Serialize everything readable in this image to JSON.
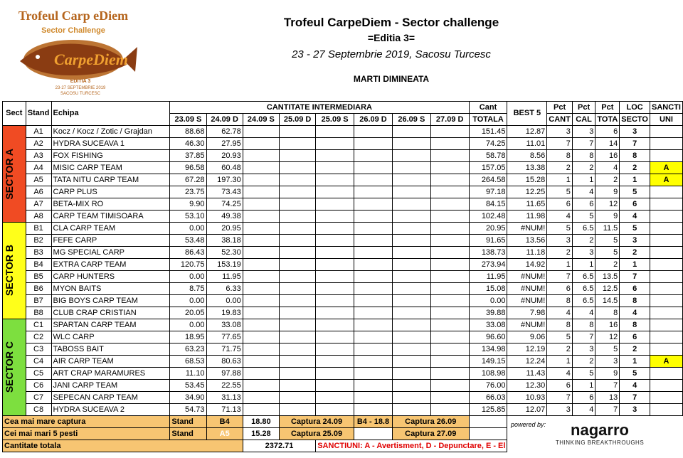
{
  "header": {
    "title": "Trofeul CarpeDiem - Sector challenge",
    "edition": "=Editia 3=",
    "dates": "23 - 27 Septembrie 2019, Sacosu Turcesc",
    "session": "MARTI DIMINEATA"
  },
  "logo": {
    "line1": "Trofeul Carp eDiem",
    "line2": "Sector Challenge",
    "brand": "CarpeDiem",
    "edition": "EDITIA 3",
    "dates": "23-27 SEPTEMBRIE 2019",
    "place": "SACOSU TURCESC"
  },
  "columns": {
    "sect": "Sect",
    "stand": "Stand",
    "echipa": "Echipa",
    "intermediara": "CANTITATE INTERMEDIARA",
    "days": [
      "23.09 S",
      "24.09 D",
      "24.09 S",
      "25.09 D",
      "25.09 S",
      "26.09 D",
      "26.09 S",
      "27.09 D"
    ],
    "cant1": "Cant",
    "cant2": "TOTALA",
    "best": "BEST 5",
    "pctcant1": "Pct",
    "pctcant2": "CANT",
    "pctcal1": "Pct",
    "pctcal2": "CAL",
    "pcttota1": "Pct",
    "pcttota2": "TOTA",
    "loc1": "LOC",
    "loc2": "SECTO",
    "sanct1": "SANCTI",
    "sanct2": "UNI"
  },
  "sectors": [
    {
      "label": "SECTOR A",
      "rows": [
        {
          "stand": "A1",
          "team": "Kocz / Kocz / Zotic / Grajdan",
          "d1": "88.68",
          "d2": "62.78",
          "total": "151.45",
          "best": "12.87",
          "pcant": "3",
          "pcal": "3",
          "ptot": "6",
          "loc": "3",
          "sanct": ""
        },
        {
          "stand": "A2",
          "team": "HYDRA SUCEAVA 1",
          "d1": "46.30",
          "d2": "27.95",
          "total": "74.25",
          "best": "11.01",
          "pcant": "7",
          "pcal": "7",
          "ptot": "14",
          "loc": "7",
          "sanct": ""
        },
        {
          "stand": "A3",
          "team": "FOX FISHING",
          "d1": "37.85",
          "d2": "20.93",
          "total": "58.78",
          "best": "8.56",
          "pcant": "8",
          "pcal": "8",
          "ptot": "16",
          "loc": "8",
          "sanct": ""
        },
        {
          "stand": "A4",
          "team": "MISIC CARP TEAM",
          "d1": "96.58",
          "d2": "60.48",
          "total": "157.05",
          "best": "13.38",
          "pcant": "2",
          "pcal": "2",
          "ptot": "4",
          "loc": "2",
          "sanct": "A"
        },
        {
          "stand": "A5",
          "team": "TATA NITU CARP TEAM",
          "d1": "67.28",
          "d2": "197.30",
          "total": "264.58",
          "best": "15.28",
          "pcant": "1",
          "pcal": "1",
          "ptot": "2",
          "loc": "1",
          "sanct": "A"
        },
        {
          "stand": "A6",
          "team": "CARP PLUS",
          "d1": "23.75",
          "d2": "73.43",
          "total": "97.18",
          "best": "12.25",
          "pcant": "5",
          "pcal": "4",
          "ptot": "9",
          "loc": "5",
          "sanct": ""
        },
        {
          "stand": "A7",
          "team": "BETA-MIX RO",
          "d1": "9.90",
          "d2": "74.25",
          "total": "84.15",
          "best": "11.65",
          "pcant": "6",
          "pcal": "6",
          "ptot": "12",
          "loc": "6",
          "sanct": ""
        },
        {
          "stand": "A8",
          "team": "CARP TEAM TIMISOARA",
          "d1": "53.10",
          "d2": "49.38",
          "total": "102.48",
          "best": "11.98",
          "pcant": "4",
          "pcal": "5",
          "ptot": "9",
          "loc": "4",
          "sanct": ""
        }
      ]
    },
    {
      "label": "SECTOR B",
      "rows": [
        {
          "stand": "B1",
          "team": "CLA CARP TEAM",
          "d1": "0.00",
          "d2": "20.95",
          "total": "20.95",
          "best": "#NUM!",
          "pcant": "5",
          "pcal": "6.5",
          "ptot": "11.5",
          "loc": "5",
          "sanct": ""
        },
        {
          "stand": "B2",
          "team": "FEFE CARP",
          "d1": "53.48",
          "d2": "38.18",
          "total": "91.65",
          "best": "13.56",
          "pcant": "3",
          "pcal": "2",
          "ptot": "5",
          "loc": "3",
          "sanct": ""
        },
        {
          "stand": "B3",
          "team": "MG SPECIAL CARP",
          "d1": "86.43",
          "d2": "52.30",
          "total": "138.73",
          "best": "11.18",
          "pcant": "2",
          "pcal": "3",
          "ptot": "5",
          "loc": "2",
          "sanct": ""
        },
        {
          "stand": "B4",
          "team": "EXTRA CARP TEAM",
          "d1": "120.75",
          "d2": "153.19",
          "total": "273.94",
          "best": "14.92",
          "pcant": "1",
          "pcal": "1",
          "ptot": "2",
          "loc": "1",
          "sanct": ""
        },
        {
          "stand": "B5",
          "team": "CARP HUNTERS",
          "d1": "0.00",
          "d2": "11.95",
          "total": "11.95",
          "best": "#NUM!",
          "pcant": "7",
          "pcal": "6.5",
          "ptot": "13.5",
          "loc": "7",
          "sanct": ""
        },
        {
          "stand": "B6",
          "team": "MYON BAITS",
          "d1": "8.75",
          "d2": "6.33",
          "total": "15.08",
          "best": "#NUM!",
          "pcant": "6",
          "pcal": "6.5",
          "ptot": "12.5",
          "loc": "6",
          "sanct": ""
        },
        {
          "stand": "B7",
          "team": "BIG BOYS CARP TEAM",
          "d1": "0.00",
          "d2": "0.00",
          "total": "0.00",
          "best": "#NUM!",
          "pcant": "8",
          "pcal": "6.5",
          "ptot": "14.5",
          "loc": "8",
          "sanct": ""
        },
        {
          "stand": "B8",
          "team": "CLUB CRAP CRISTIAN",
          "d1": "20.05",
          "d2": "19.83",
          "total": "39.88",
          "best": "7.98",
          "pcant": "4",
          "pcal": "4",
          "ptot": "8",
          "loc": "4",
          "sanct": ""
        }
      ]
    },
    {
      "label": "SECTOR C",
      "rows": [
        {
          "stand": "C1",
          "team": "SPARTAN CARP TEAM",
          "d1": "0.00",
          "d2": "33.08",
          "total": "33.08",
          "best": "#NUM!",
          "pcant": "8",
          "pcal": "8",
          "ptot": "16",
          "loc": "8",
          "sanct": ""
        },
        {
          "stand": "C2",
          "team": "WLC CARP",
          "d1": "18.95",
          "d2": "77.65",
          "total": "96.60",
          "best": "9.06",
          "pcant": "5",
          "pcal": "7",
          "ptot": "12",
          "loc": "6",
          "sanct": ""
        },
        {
          "stand": "C3",
          "team": "TABOSS BAIT",
          "d1": "63.23",
          "d2": "71.75",
          "total": "134.98",
          "best": "12.19",
          "pcant": "2",
          "pcal": "3",
          "ptot": "5",
          "loc": "2",
          "sanct": ""
        },
        {
          "stand": "C4",
          "team": "AIR CARP TEAM",
          "d1": "68.53",
          "d2": "80.63",
          "total": "149.15",
          "best": "12.24",
          "pcant": "1",
          "pcal": "2",
          "ptot": "3",
          "loc": "1",
          "sanct": "A"
        },
        {
          "stand": "C5",
          "team": "ART CRAP MARAMURES",
          "d1": "11.10",
          "d2": "97.88",
          "total": "108.98",
          "best": "11.43",
          "pcant": "4",
          "pcal": "5",
          "ptot": "9",
          "loc": "5",
          "sanct": ""
        },
        {
          "stand": "C6",
          "team": "JANI CARP TEAM",
          "d1": "53.45",
          "d2": "22.55",
          "total": "76.00",
          "best": "12.30",
          "pcant": "6",
          "pcal": "1",
          "ptot": "7",
          "loc": "4",
          "sanct": ""
        },
        {
          "stand": "C7",
          "team": "SEPECAN CARP TEAM",
          "d1": "34.90",
          "d2": "31.13",
          "total": "66.03",
          "best": "10.93",
          "pcant": "7",
          "pcal": "6",
          "ptot": "13",
          "loc": "7",
          "sanct": ""
        },
        {
          "stand": "C8",
          "team": "HYDRA SUCEAVA 2",
          "d1": "54.73",
          "d2": "71.13",
          "total": "125.85",
          "best": "12.07",
          "pcant": "3",
          "pcal": "4",
          "ptot": "7",
          "loc": "3",
          "sanct": ""
        }
      ]
    }
  ],
  "footer": {
    "r1_label": "Cea mai mare captura",
    "r1_stand": "Stand",
    "r1_standval": "B4",
    "r1_val": "18.80",
    "r1_c1": "Captura 24.09",
    "r1_c2": "B4 - 18.8",
    "r1_c3": "Captura 26.09",
    "r2_label": "Cei mai mari 5 pesti",
    "r2_stand": "Stand",
    "r2_standval": "A5",
    "r2_val": "15.28",
    "r2_c1": "Captura 25.09",
    "r2_c3": "Captura 27.09",
    "r3_label": "Cantitate totala",
    "r3_val": "2372.71",
    "sanctiuni": "SANCTIUNI: A - Avertisment, D - Depunctare, E - El",
    "powered": "powered by:",
    "brand": "nagarro",
    "tagline": "THINKING BREAKTHROUGHS"
  },
  "colors": {
    "sectorA": "#f04b23",
    "sectorB": "#ffff1a",
    "sectorC": "#7ddf3f",
    "footer": "#f7c572",
    "highlight": "#ffff00",
    "red": "#ff3a1e"
  }
}
